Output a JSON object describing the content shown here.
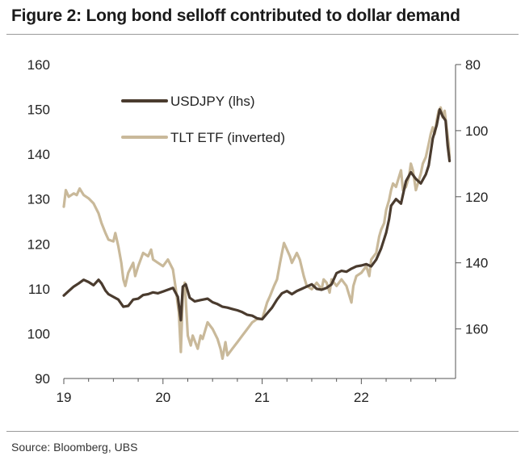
{
  "title": "Figure 2: Long bond selloff contributed to dollar demand",
  "source": "Source: Bloomberg, UBS",
  "colors": {
    "usdjpy": "#4a3b2e",
    "tlt": "#c9b99a",
    "axis": "#555555"
  },
  "chart_data": {
    "type": "line",
    "title": "Figure 2: Long bond selloff contributed to dollar demand",
    "x_unit": "year (decimal)",
    "xlim": [
      2019.0,
      2022.95
    ],
    "x_ticks": [
      2019,
      2020,
      2021,
      2022
    ],
    "x_tick_labels": [
      "19",
      "20",
      "21",
      "22"
    ],
    "y_left": {
      "label": "USDJPY (lhs)",
      "lim": [
        90,
        160
      ],
      "ticks": [
        "90",
        "100",
        "110",
        "120",
        "130",
        "140",
        "150",
        "160"
      ]
    },
    "y_right": {
      "label": "TLT ETF (inverted)",
      "lim": [
        80,
        175
      ],
      "inverted": true,
      "ticks": [
        "80",
        "100",
        "120",
        "140",
        "160"
      ]
    },
    "legend_position": "top-left",
    "series": [
      {
        "name": "USDJPY (lhs)",
        "axis": "left",
        "points": [
          [
            2019.0,
            108.5
          ],
          [
            2019.05,
            109.5
          ],
          [
            2019.1,
            110.5
          ],
          [
            2019.15,
            111.2
          ],
          [
            2019.2,
            112.0
          ],
          [
            2019.25,
            111.5
          ],
          [
            2019.3,
            110.8
          ],
          [
            2019.35,
            112.0
          ],
          [
            2019.38,
            111.2
          ],
          [
            2019.42,
            109.6
          ],
          [
            2019.45,
            108.8
          ],
          [
            2019.5,
            108.2
          ],
          [
            2019.55,
            107.6
          ],
          [
            2019.6,
            106.0
          ],
          [
            2019.65,
            106.2
          ],
          [
            2019.7,
            107.6
          ],
          [
            2019.75,
            107.8
          ],
          [
            2019.8,
            108.6
          ],
          [
            2019.85,
            108.8
          ],
          [
            2019.9,
            109.2
          ],
          [
            2019.95,
            109.0
          ],
          [
            2020.0,
            109.4
          ],
          [
            2020.05,
            109.8
          ],
          [
            2020.1,
            110.2
          ],
          [
            2020.15,
            108.2
          ],
          [
            2020.18,
            103.0
          ],
          [
            2020.2,
            110.5
          ],
          [
            2020.23,
            111.0
          ],
          [
            2020.27,
            108.0
          ],
          [
            2020.32,
            107.2
          ],
          [
            2020.38,
            107.5
          ],
          [
            2020.45,
            107.8
          ],
          [
            2020.5,
            107.0
          ],
          [
            2020.55,
            106.6
          ],
          [
            2020.6,
            106.0
          ],
          [
            2020.65,
            105.8
          ],
          [
            2020.7,
            105.5
          ],
          [
            2020.75,
            105.2
          ],
          [
            2020.8,
            104.8
          ],
          [
            2020.85,
            104.2
          ],
          [
            2020.9,
            104.0
          ],
          [
            2020.95,
            103.4
          ],
          [
            2021.0,
            103.2
          ],
          [
            2021.05,
            104.5
          ],
          [
            2021.1,
            105.8
          ],
          [
            2021.15,
            107.6
          ],
          [
            2021.2,
            109.0
          ],
          [
            2021.25,
            109.5
          ],
          [
            2021.3,
            108.8
          ],
          [
            2021.35,
            109.5
          ],
          [
            2021.4,
            110.0
          ],
          [
            2021.45,
            110.5
          ],
          [
            2021.5,
            111.0
          ],
          [
            2021.55,
            110.0
          ],
          [
            2021.6,
            109.8
          ],
          [
            2021.65,
            110.2
          ],
          [
            2021.7,
            111.0
          ],
          [
            2021.75,
            113.5
          ],
          [
            2021.8,
            114.0
          ],
          [
            2021.85,
            113.8
          ],
          [
            2021.9,
            114.5
          ],
          [
            2021.95,
            115.0
          ],
          [
            2022.0,
            115.2
          ],
          [
            2022.05,
            115.5
          ],
          [
            2022.1,
            115.0
          ],
          [
            2022.15,
            116.5
          ],
          [
            2022.2,
            119.0
          ],
          [
            2022.25,
            122.5
          ],
          [
            2022.28,
            125.5
          ],
          [
            2022.3,
            128.5
          ],
          [
            2022.35,
            130.0
          ],
          [
            2022.4,
            129.0
          ],
          [
            2022.45,
            134.0
          ],
          [
            2022.5,
            136.0
          ],
          [
            2022.55,
            134.5
          ],
          [
            2022.6,
            133.5
          ],
          [
            2022.65,
            135.5
          ],
          [
            2022.68,
            137.5
          ],
          [
            2022.72,
            143.5
          ],
          [
            2022.76,
            146.5
          ],
          [
            2022.79,
            150.0
          ],
          [
            2022.82,
            148.5
          ],
          [
            2022.85,
            147.5
          ],
          [
            2022.87,
            142.0
          ],
          [
            2022.89,
            138.5
          ]
        ]
      },
      {
        "name": "TLT ETF (inverted)",
        "axis": "right",
        "points": [
          [
            2019.0,
            123.0
          ],
          [
            2019.02,
            118.0
          ],
          [
            2019.05,
            120.0
          ],
          [
            2019.1,
            119.0
          ],
          [
            2019.13,
            119.5
          ],
          [
            2019.16,
            117.5
          ],
          [
            2019.2,
            119.5
          ],
          [
            2019.25,
            120.5
          ],
          [
            2019.3,
            122.0
          ],
          [
            2019.35,
            125.0
          ],
          [
            2019.38,
            128.0
          ],
          [
            2019.42,
            131.0
          ],
          [
            2019.45,
            133.0
          ],
          [
            2019.5,
            133.5
          ],
          [
            2019.52,
            131.0
          ],
          [
            2019.55,
            135.0
          ],
          [
            2019.58,
            140.0
          ],
          [
            2019.6,
            145.0
          ],
          [
            2019.62,
            147.0
          ],
          [
            2019.65,
            143.0
          ],
          [
            2019.7,
            140.0
          ],
          [
            2019.72,
            144.0
          ],
          [
            2019.75,
            141.0
          ],
          [
            2019.8,
            137.0
          ],
          [
            2019.85,
            138.0
          ],
          [
            2019.88,
            136.0
          ],
          [
            2019.9,
            139.0
          ],
          [
            2019.95,
            140.0
          ],
          [
            2020.0,
            141.0
          ],
          [
            2020.05,
            139.0
          ],
          [
            2020.1,
            142.0
          ],
          [
            2020.13,
            148.0
          ],
          [
            2020.16,
            155.0
          ],
          [
            2020.18,
            167.0
          ],
          [
            2020.2,
            150.0
          ],
          [
            2020.22,
            146.0
          ],
          [
            2020.25,
            162.0
          ],
          [
            2020.28,
            165.0
          ],
          [
            2020.3,
            162.0
          ],
          [
            2020.35,
            166.0
          ],
          [
            2020.38,
            162.0
          ],
          [
            2020.4,
            163.0
          ],
          [
            2020.45,
            158.0
          ],
          [
            2020.5,
            160.0
          ],
          [
            2020.55,
            163.0
          ],
          [
            2020.58,
            166.0
          ],
          [
            2020.6,
            169.0
          ],
          [
            2020.63,
            164.0
          ],
          [
            2020.65,
            168.0
          ],
          [
            2020.7,
            166.0
          ],
          [
            2020.75,
            164.0
          ],
          [
            2020.8,
            162.0
          ],
          [
            2020.85,
            160.0
          ],
          [
            2020.9,
            158.0
          ],
          [
            2020.95,
            157.0
          ],
          [
            2021.0,
            157.0
          ],
          [
            2021.03,
            154.0
          ],
          [
            2021.05,
            152.0
          ],
          [
            2021.08,
            150.0
          ],
          [
            2021.12,
            147.0
          ],
          [
            2021.15,
            145.0
          ],
          [
            2021.18,
            140.0
          ],
          [
            2021.2,
            137.0
          ],
          [
            2021.22,
            134.0
          ],
          [
            2021.25,
            136.0
          ],
          [
            2021.28,
            138.0
          ],
          [
            2021.3,
            140.0
          ],
          [
            2021.35,
            137.0
          ],
          [
            2021.38,
            139.0
          ],
          [
            2021.42,
            144.0
          ],
          [
            2021.45,
            147.0
          ],
          [
            2021.5,
            148.0
          ],
          [
            2021.55,
            146.0
          ],
          [
            2021.6,
            148.0
          ],
          [
            2021.62,
            145.0
          ],
          [
            2021.65,
            146.0
          ],
          [
            2021.68,
            149.0
          ],
          [
            2021.7,
            145.0
          ],
          [
            2021.75,
            147.0
          ],
          [
            2021.8,
            145.0
          ],
          [
            2021.85,
            147.0
          ],
          [
            2021.88,
            150.0
          ],
          [
            2021.9,
            152.0
          ],
          [
            2021.92,
            147.0
          ],
          [
            2021.95,
            144.0
          ],
          [
            2022.0,
            143.0
          ],
          [
            2022.05,
            141.0
          ],
          [
            2022.08,
            144.0
          ],
          [
            2022.1,
            139.0
          ],
          [
            2022.15,
            137.0
          ],
          [
            2022.18,
            132.0
          ],
          [
            2022.2,
            130.0
          ],
          [
            2022.23,
            128.0
          ],
          [
            2022.25,
            124.0
          ],
          [
            2022.28,
            121.0
          ],
          [
            2022.3,
            118.0
          ],
          [
            2022.32,
            116.0
          ],
          [
            2022.35,
            117.0
          ],
          [
            2022.38,
            114.0
          ],
          [
            2022.4,
            112.0
          ],
          [
            2022.42,
            118.0
          ],
          [
            2022.45,
            117.0
          ],
          [
            2022.48,
            114.0
          ],
          [
            2022.5,
            110.0
          ],
          [
            2022.52,
            112.0
          ],
          [
            2022.55,
            118.0
          ],
          [
            2022.58,
            115.0
          ],
          [
            2022.6,
            113.0
          ],
          [
            2022.62,
            110.0
          ],
          [
            2022.65,
            108.0
          ],
          [
            2022.68,
            104.0
          ],
          [
            2022.7,
            101.0
          ],
          [
            2022.72,
            99.0
          ],
          [
            2022.74,
            101.0
          ],
          [
            2022.76,
            97.0
          ],
          [
            2022.78,
            94.0
          ],
          [
            2022.8,
            93.0
          ],
          [
            2022.82,
            96.0
          ],
          [
            2022.84,
            94.0
          ],
          [
            2022.86,
            99.0
          ],
          [
            2022.88,
            104.0
          ],
          [
            2022.89,
            108.0
          ]
        ]
      }
    ]
  }
}
